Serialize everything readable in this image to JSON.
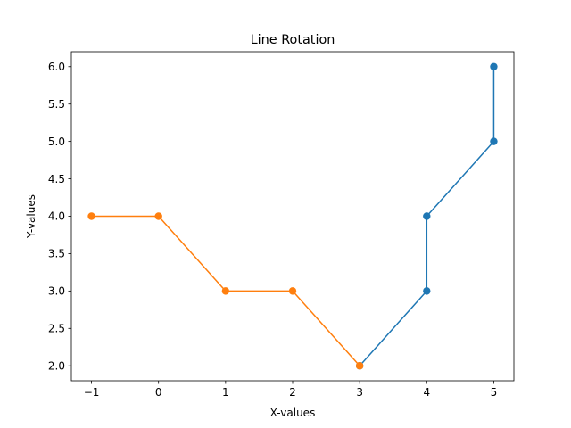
{
  "chart_data": {
    "type": "line",
    "title": "Line Rotation",
    "xlabel": "X-values",
    "ylabel": "Y-values",
    "xlim": [
      -1.3,
      5.3
    ],
    "ylim": [
      1.8,
      6.2
    ],
    "x_ticks": [
      -1,
      0,
      1,
      2,
      3,
      4,
      5
    ],
    "x_tick_labels": [
      "−1",
      "0",
      "1",
      "2",
      "3",
      "4",
      "5"
    ],
    "y_ticks": [
      2.0,
      2.5,
      3.0,
      3.5,
      4.0,
      4.5,
      5.0,
      5.5,
      6.0
    ],
    "y_tick_labels": [
      "2.0",
      "2.5",
      "3.0",
      "3.5",
      "4.0",
      "4.5",
      "5.0",
      "5.5",
      "6.0"
    ],
    "grid": false,
    "legend": "none",
    "series": [
      {
        "color": "#1f77b4",
        "x": [
          3,
          4,
          4,
          5,
          5
        ],
        "y": [
          2,
          3,
          4,
          5,
          6
        ]
      },
      {
        "color": "#ff7f0e",
        "x": [
          -1,
          0,
          1,
          2,
          3
        ],
        "y": [
          4,
          4,
          3,
          3,
          2
        ]
      }
    ]
  }
}
